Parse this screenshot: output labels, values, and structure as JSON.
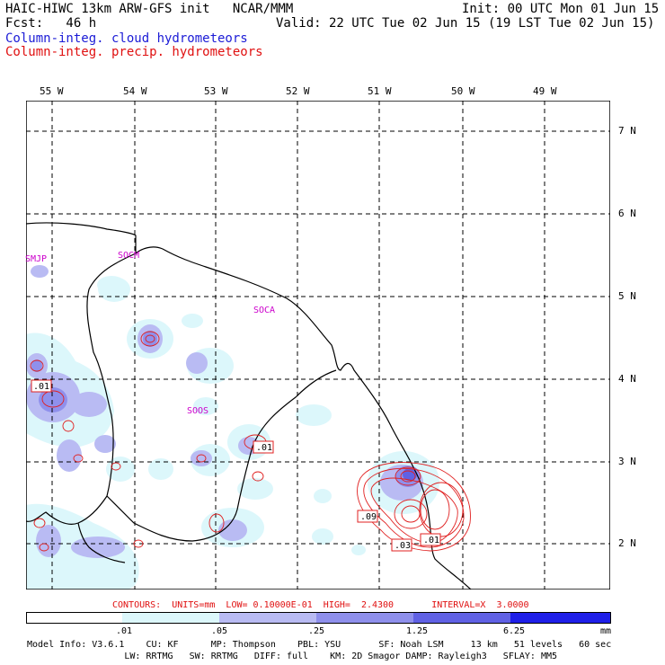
{
  "header": {
    "title_left": "HAIC-HIWC 13km ARW-GFS init   NCAR/MMM",
    "init": "Init: 00 UTC Mon 01 Jun 15",
    "fcst": "Fcst:   46 h",
    "valid": "Valid: 22 UTC Tue 02 Jun 15 (19 LST Tue 02 Jun 15)",
    "field1": "Column-integ. cloud hydrometeors",
    "field2": "Column-integ. precip. hydrometeors"
  },
  "map": {
    "lon_labels": [
      "55 W",
      "54 W",
      "53 W",
      "52 W",
      "51 W",
      "50 W",
      "49 W"
    ],
    "lat_labels": [
      "7 N",
      "6 N",
      "5 N",
      "4 N",
      "3 N",
      "2 N"
    ],
    "place_labels": [
      "SMJP",
      "SOCM",
      "SOCA",
      "SOOS"
    ],
    "contour_labels": [
      ".01",
      ".01",
      ".09",
      ".03",
      ".01"
    ],
    "colors": {
      "fill1": "#dcf7fb",
      "fill2": "#b9bbf3",
      "fill3": "#8f90ec",
      "fill4": "#6061e4",
      "contour": "#e02020",
      "place": "#cc00cc"
    }
  },
  "contour_info": "CONTOURS:  UNITS=mm  LOW= 0.10000E-01  HIGH=  2.4300       INTERVAL=X  3.0000",
  "colorbar": {
    "labels": [
      ".01",
      ".05",
      ".25",
      "1.25",
      "6.25",
      "mm"
    ],
    "colors": [
      "#ffffff",
      "#dcf7fb",
      "#b9bbf3",
      "#8f90ec",
      "#6061e4",
      "#3334e6",
      "#1010e8"
    ]
  },
  "footer": {
    "line1": "Model Info: V3.6.1    CU: KF      MP: Thompson    PBL: YSU       SF: Noah LSM     13 km   51 levels   60 sec",
    "line2": "                  LW: RRTMG   SW: RRTMG   DIFF: full    KM: 2D Smagor DAMP: Rayleigh3   SFLAY: MM5"
  }
}
